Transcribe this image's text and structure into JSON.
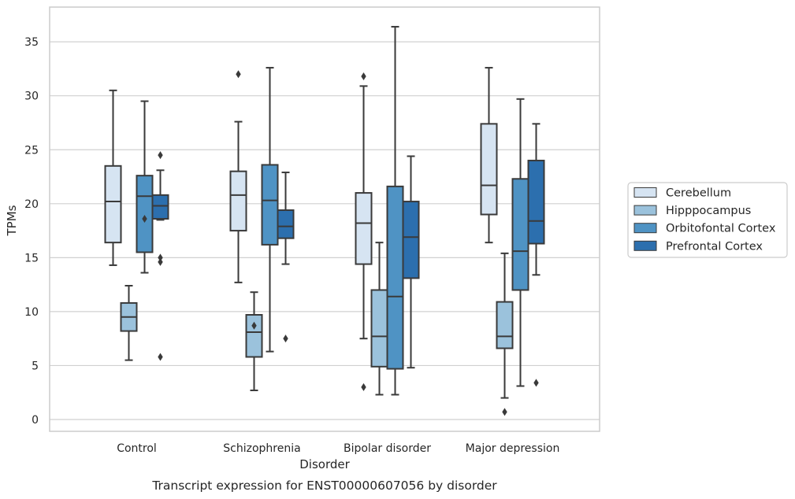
{
  "chart_data": {
    "type": "box",
    "caption": "Transcript expression for ENST00000607056 by disorder",
    "xlabel": "Disorder",
    "ylabel": "TPMs",
    "ylim": [
      -1.1,
      38.2
    ],
    "yticks": [
      0,
      5,
      10,
      15,
      20,
      25,
      30,
      35
    ],
    "grid": "horizontal",
    "legend_placement": "right",
    "categories": [
      "Control",
      "Schizophrenia",
      "Bipolar disorder",
      "Major depression"
    ],
    "series": [
      {
        "name": "Cerebellum",
        "color": "#d6e4f2",
        "boxes": [
          {
            "whisker_low": 14.3,
            "q1": 16.4,
            "median": 20.2,
            "q3": 23.5,
            "whisker_high": 30.5,
            "outliers": []
          },
          {
            "whisker_low": 12.7,
            "q1": 17.5,
            "median": 20.8,
            "q3": 23.0,
            "whisker_high": 27.6,
            "outliers": [
              32.0
            ]
          },
          {
            "whisker_low": 7.5,
            "q1": 14.4,
            "median": 18.2,
            "q3": 21.0,
            "whisker_high": 30.9,
            "outliers": [
              31.8,
              3.0
            ]
          },
          {
            "whisker_low": 16.4,
            "q1": 19.0,
            "median": 21.7,
            "q3": 27.4,
            "whisker_high": 32.6,
            "outliers": []
          }
        ]
      },
      {
        "name": "Hipppocampus",
        "color": "#9bc2dc",
        "boxes": [
          {
            "whisker_low": 5.5,
            "q1": 8.2,
            "median": 9.5,
            "q3": 10.8,
            "whisker_high": 12.4,
            "outliers": []
          },
          {
            "whisker_low": 2.7,
            "q1": 5.8,
            "median": 8.1,
            "q3": 9.7,
            "whisker_high": 11.8,
            "outliers": [
              8.7
            ]
          },
          {
            "whisker_low": 2.3,
            "q1": 4.9,
            "median": 7.7,
            "q3": 12.0,
            "whisker_high": 16.4,
            "outliers": []
          },
          {
            "whisker_low": 2.0,
            "q1": 6.6,
            "median": 7.7,
            "q3": 10.9,
            "whisker_high": 15.4,
            "outliers": [
              0.7
            ]
          }
        ]
      },
      {
        "name": "Orbitofontal Cortex",
        "color": "#4f93c4",
        "boxes": [
          {
            "whisker_low": 13.6,
            "q1": 15.5,
            "median": 20.7,
            "q3": 22.6,
            "whisker_high": 29.5,
            "outliers": [
              18.6
            ]
          },
          {
            "whisker_low": 6.3,
            "q1": 16.2,
            "median": 20.3,
            "q3": 23.6,
            "whisker_high": 32.6,
            "outliers": []
          },
          {
            "whisker_low": 2.3,
            "q1": 4.7,
            "median": 11.4,
            "q3": 21.6,
            "whisker_high": 36.4,
            "outliers": []
          },
          {
            "whisker_low": 3.1,
            "q1": 12.0,
            "median": 15.6,
            "q3": 22.3,
            "whisker_high": 29.7,
            "outliers": []
          }
        ]
      },
      {
        "name": "Prefrontal Cortex",
        "color": "#2c6fae",
        "boxes": [
          {
            "whisker_low": 18.5,
            "q1": 18.6,
            "median": 19.8,
            "q3": 20.8,
            "whisker_high": 23.1,
            "outliers": [
              24.5,
              15.0,
              14.6,
              5.8
            ]
          },
          {
            "whisker_low": 14.4,
            "q1": 16.8,
            "median": 17.9,
            "q3": 19.4,
            "whisker_high": 22.9,
            "outliers": [
              7.5
            ]
          },
          {
            "whisker_low": 4.8,
            "q1": 13.1,
            "median": 16.9,
            "q3": 20.2,
            "whisker_high": 24.4,
            "outliers": []
          },
          {
            "whisker_low": 13.4,
            "q1": 16.3,
            "median": 18.4,
            "q3": 24.0,
            "whisker_high": 27.4,
            "outliers": [
              3.4
            ]
          }
        ]
      }
    ]
  }
}
